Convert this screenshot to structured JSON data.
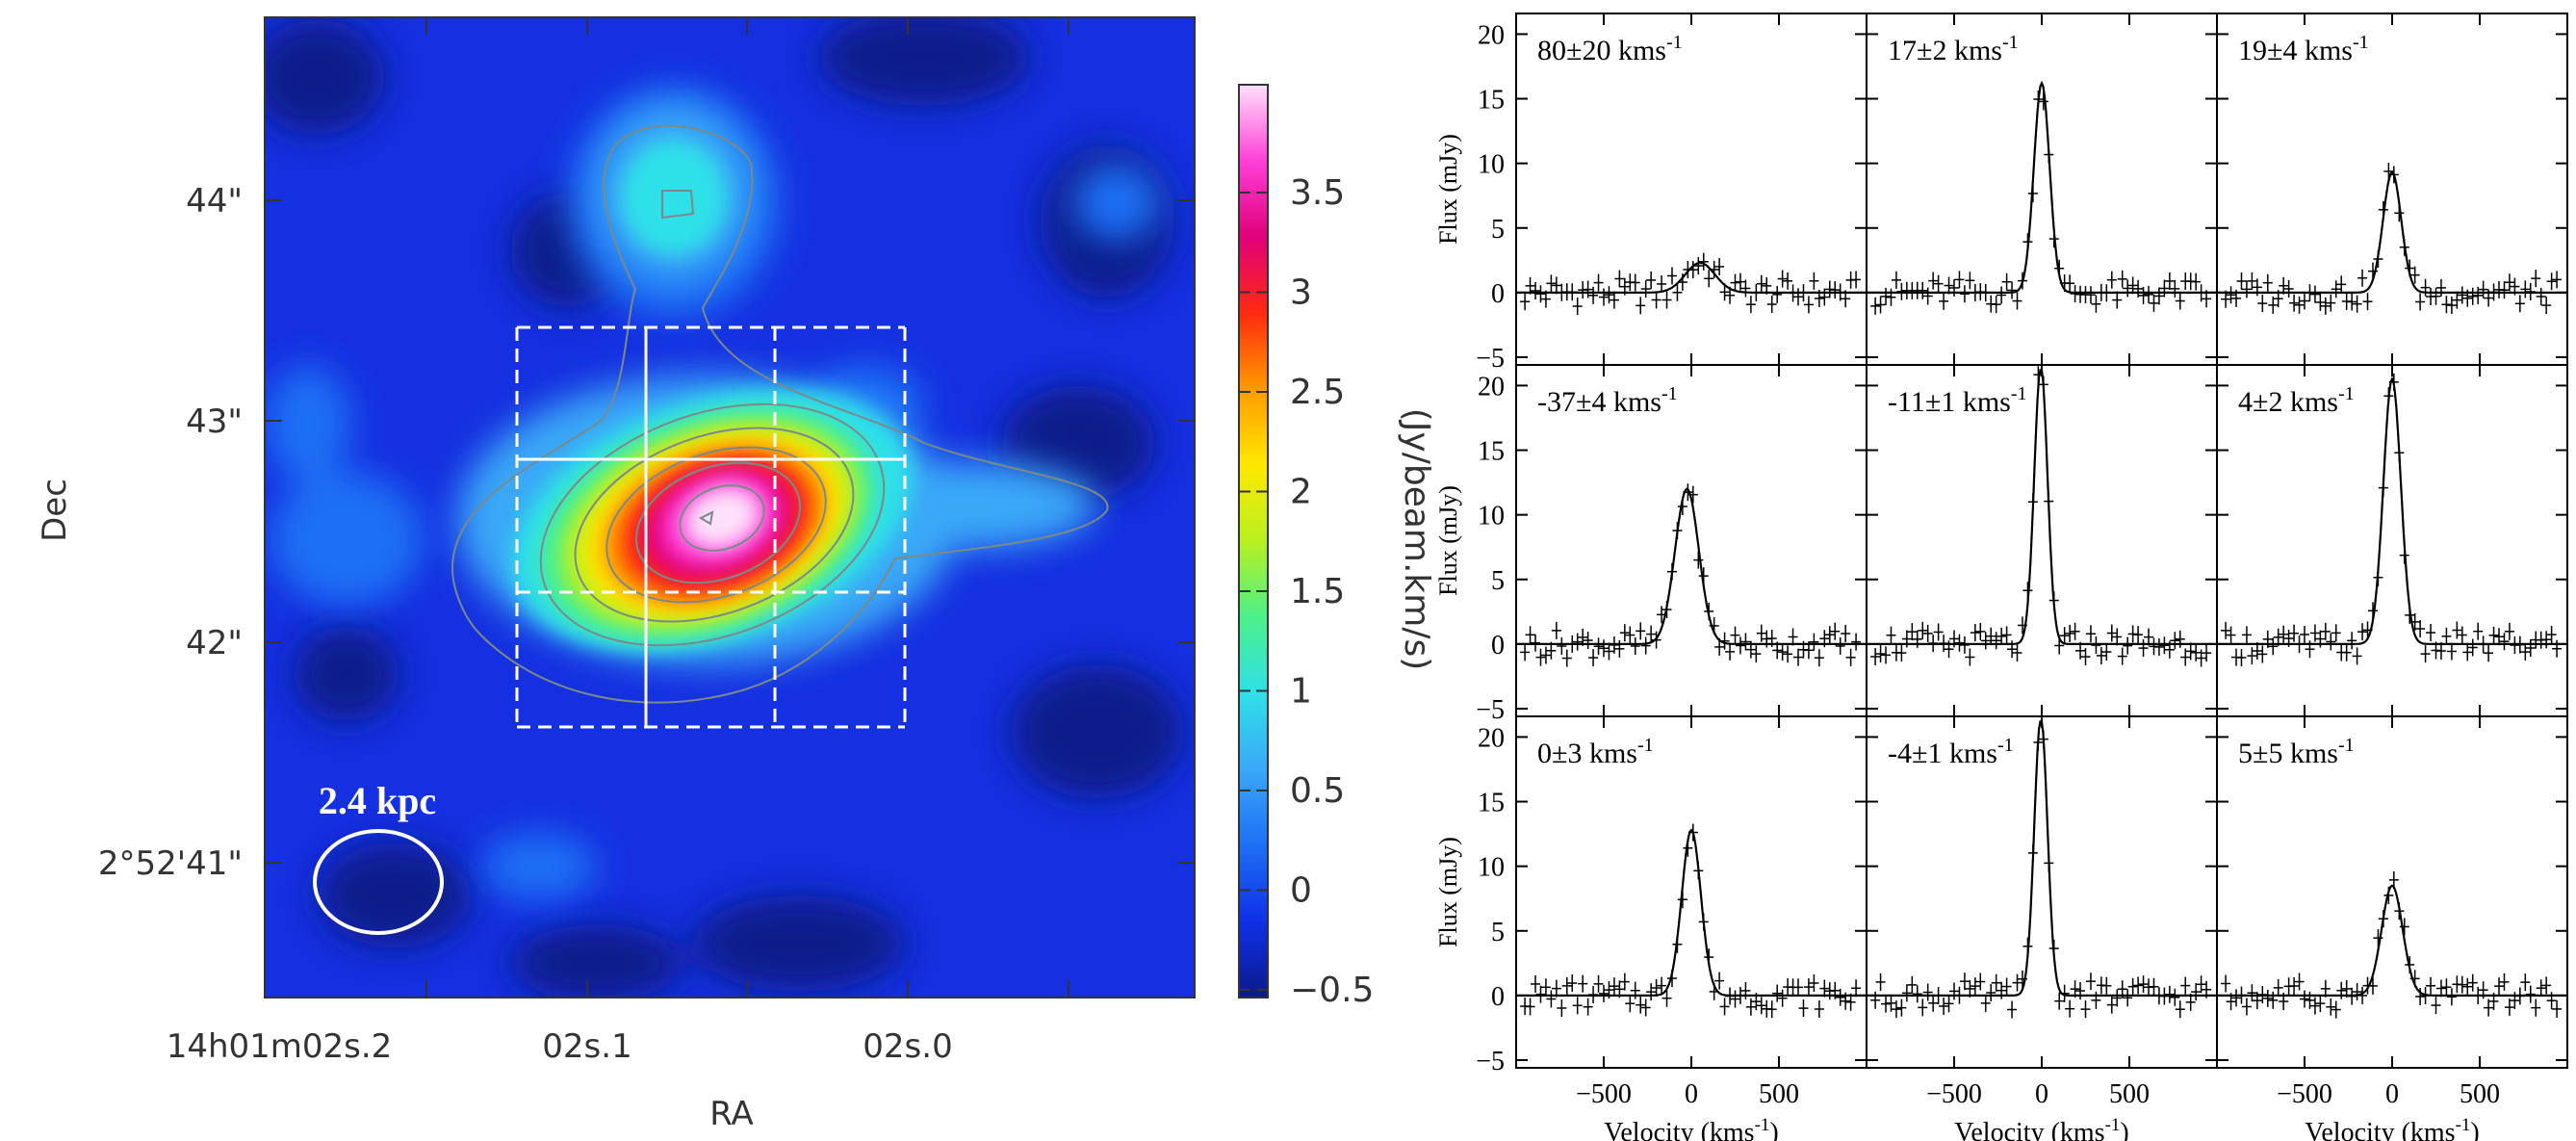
{
  "left_panel": {
    "xlabel": "RA",
    "ylabel": "Dec",
    "x_ticks": [
      "14h01m02s.2",
      "02s.1",
      "02s.0"
    ],
    "y_ticks": [
      "44\"",
      "43\"",
      "42\"",
      "2°52'41\""
    ],
    "scale_label": "2.4 kpc",
    "colorbar_label": "(Jy/beam.km/s)",
    "colorbar_ticks": [
      "3.5",
      "3",
      "2.5",
      "2",
      "1.5",
      "1",
      "0.5",
      "0",
      "−0.5"
    ],
    "colormap": [
      "#0b1a8a",
      "#1030e8",
      "#1e6ff5",
      "#3aa8f7",
      "#2fe0e8",
      "#4cf08a",
      "#b8f020",
      "#ffe800",
      "#ff9a00",
      "#ff2a10",
      "#e0007a",
      "#ff40d8",
      "#ffe0fb"
    ]
  },
  "chart_data": {
    "type": "line",
    "title": "",
    "xlabel": "Velocity (kms-1)",
    "ylabel": "Flux (mJy)",
    "xlim": [
      -1000,
      1000
    ],
    "ylim": [
      -5,
      21
    ],
    "x_ticks": [
      "−500",
      "0",
      "500"
    ],
    "y_ticks": [
      "20",
      "15",
      "10",
      "5",
      "0",
      "−5"
    ],
    "panels": [
      {
        "label": "80±20 kms",
        "center": 50,
        "peak": 2.3,
        "sigma": 85
      },
      {
        "label": "17±2 kms",
        "center": 0,
        "peak": 16.2,
        "sigma": 45
      },
      {
        "label": "19±4 kms",
        "center": 0,
        "peak": 9.3,
        "sigma": 52
      },
      {
        "label": "-37±4 kms",
        "center": -25,
        "peak": 12.0,
        "sigma": 68
      },
      {
        "label": "-11±1 kms",
        "center": -5,
        "peak": 21.5,
        "sigma": 38
      },
      {
        "label": "4±2 kms",
        "center": 0,
        "peak": 20.5,
        "sigma": 50
      },
      {
        "label": "0±3 kms",
        "center": 0,
        "peak": 12.8,
        "sigma": 55
      },
      {
        "label": "-4±1 kms",
        "center": -5,
        "peak": 21.5,
        "sigma": 38
      },
      {
        "label": "5±5 kms",
        "center": 0,
        "peak": 8.5,
        "sigma": 60
      }
    ]
  }
}
